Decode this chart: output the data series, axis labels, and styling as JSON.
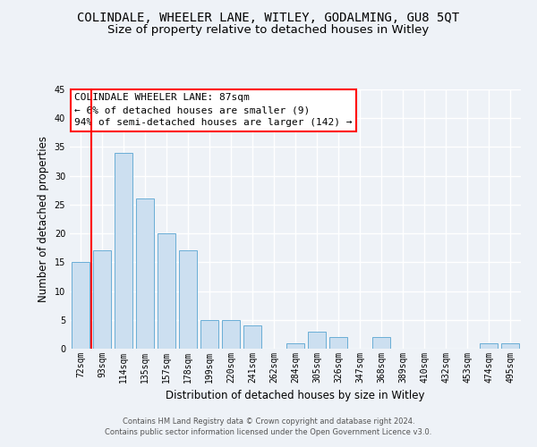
{
  "title": "COLINDALE, WHEELER LANE, WITLEY, GODALMING, GU8 5QT",
  "subtitle": "Size of property relative to detached houses in Witley",
  "xlabel": "Distribution of detached houses by size in Witley",
  "ylabel": "Number of detached properties",
  "categories": [
    "72sqm",
    "93sqm",
    "114sqm",
    "135sqm",
    "157sqm",
    "178sqm",
    "199sqm",
    "220sqm",
    "241sqm",
    "262sqm",
    "284sqm",
    "305sqm",
    "326sqm",
    "347sqm",
    "368sqm",
    "389sqm",
    "410sqm",
    "432sqm",
    "453sqm",
    "474sqm",
    "495sqm"
  ],
  "values": [
    15,
    17,
    34,
    26,
    20,
    17,
    5,
    5,
    4,
    0,
    1,
    3,
    2,
    0,
    2,
    0,
    0,
    0,
    0,
    1,
    1
  ],
  "bar_color": "#ccdff0",
  "bar_edgecolor": "#6aaed6",
  "ylim": [
    0,
    45
  ],
  "yticks": [
    0,
    5,
    10,
    15,
    20,
    25,
    30,
    35,
    40,
    45
  ],
  "red_line_index": 1,
  "annotation_box_text": "COLINDALE WHEELER LANE: 87sqm\n← 6% of detached houses are smaller (9)\n94% of semi-detached houses are larger (142) →",
  "footer_line1": "Contains HM Land Registry data © Crown copyright and database right 2024.",
  "footer_line2": "Contains public sector information licensed under the Open Government Licence v3.0.",
  "background_color": "#eef2f7",
  "grid_color": "#ffffff",
  "title_fontsize": 10,
  "subtitle_fontsize": 9.5,
  "tick_fontsize": 7,
  "ylabel_fontsize": 8.5,
  "xlabel_fontsize": 8.5,
  "annotation_fontsize": 8,
  "footer_fontsize": 6
}
